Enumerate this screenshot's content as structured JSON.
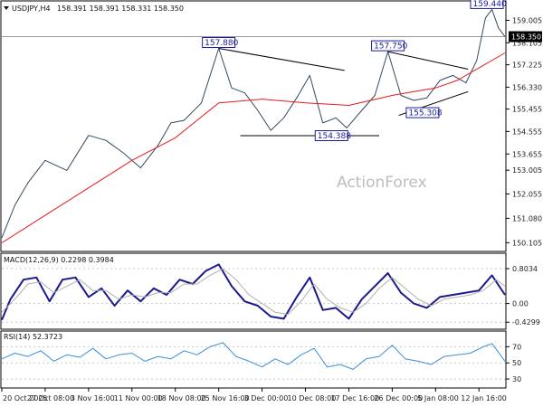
{
  "header": {
    "symbol": "USDJPY,H4",
    "quote": "158.391 158.391 158.331 158.350",
    "arrow_icon": "triangle-down-icon"
  },
  "colors": {
    "price": "#34495e",
    "ma": "#e8191b",
    "trendline": "#000000",
    "macd_main": "#1a1a8c",
    "macd_signal": "#b0b0b0",
    "rsi": "#3a8fd6",
    "label_border": "#1a1aa0",
    "current_price_bg": "#000000"
  },
  "watermark": "ActionForex",
  "chart_data": [
    {
      "type": "line",
      "panel": "price",
      "ylim": [
        149.9,
        159.6
      ],
      "yticks": [
        150.105,
        151.08,
        152.055,
        153.005,
        153.655,
        154.555,
        155.455,
        156.33,
        157.225,
        158.105,
        159.005
      ],
      "ytick_labels": [
        "150.105",
        "151.080",
        "152.055",
        "153.005",
        "153.655",
        "154.555",
        "155.455",
        "156.330",
        "157.225",
        "158.105",
        "159.005"
      ],
      "current_price": "158.350",
      "x": [
        "20 Oct 2025",
        "27 Oct 08:00",
        "3 Nov 16:00",
        "11 Nov 00:00",
        "18 Nov 08:00",
        "25 Nov 16:00",
        "3 Dec 00:00",
        "10 Dec 08:00",
        "17 Dec 16:00",
        "26 Dec 00:00",
        "5 Jan 08:00",
        "12 Jan 16:00"
      ],
      "series": [
        {
          "role": "price",
          "x": [
            0,
            0.3,
            0.6,
            1.0,
            1.5,
            2.0,
            2.4,
            2.8,
            3.2,
            3.6,
            3.9,
            4.2,
            4.6,
            5.0,
            5.3,
            5.6,
            5.9,
            6.2,
            6.5,
            6.8,
            7.1,
            7.4,
            7.7,
            7.95,
            8.3,
            8.6,
            8.9,
            9.2,
            9.5,
            9.8,
            10.1,
            10.4,
            10.7,
            10.95,
            11.15,
            11.3,
            11.45,
            11.6
          ],
          "values": [
            150.3,
            151.6,
            152.5,
            153.4,
            153.0,
            154.4,
            154.2,
            153.7,
            153.1,
            154.0,
            154.9,
            155.0,
            155.7,
            157.88,
            156.3,
            156.1,
            155.4,
            154.6,
            155.1,
            155.9,
            156.8,
            154.9,
            155.1,
            154.7,
            155.4,
            156.0,
            157.75,
            156.0,
            155.8,
            155.9,
            156.6,
            156.8,
            156.5,
            157.4,
            159.1,
            159.44,
            158.7,
            158.35
          ]
        },
        {
          "role": "moving-average",
          "x": [
            0,
            1,
            2,
            3,
            4,
            5,
            6,
            7,
            8,
            9,
            9.5,
            10,
            10.5,
            11,
            11.6
          ],
          "values": [
            150.1,
            151.2,
            152.3,
            153.4,
            154.3,
            155.7,
            155.85,
            155.7,
            155.6,
            156.0,
            156.15,
            156.3,
            156.6,
            157.1,
            157.7
          ]
        }
      ],
      "annotations": [
        {
          "label": "157.880",
          "x": 5.0,
          "y": 157.88
        },
        {
          "label": "157.750",
          "x": 8.9,
          "y": 157.75
        },
        {
          "label": "154.388",
          "x": 7.6,
          "y": 154.388
        },
        {
          "label": "155.308",
          "x": 9.7,
          "y": 155.308
        },
        {
          "label": "159.440",
          "x": 11.3,
          "y": 159.44
        }
      ],
      "trendlines": [
        {
          "x": [
            5.0,
            7.9
          ],
          "y": [
            157.88,
            157.0
          ]
        },
        {
          "x": [
            5.5,
            8.7
          ],
          "y": [
            154.388,
            154.388
          ]
        },
        {
          "x": [
            8.9,
            10.75
          ],
          "y": [
            157.75,
            157.05
          ]
        },
        {
          "x": [
            9.15,
            10.75
          ],
          "y": [
            155.2,
            156.15
          ]
        }
      ]
    },
    {
      "type": "line",
      "panel": "macd",
      "title": "MACD(12,26,9) 0.2298 0.3984",
      "ylim": [
        -0.55,
        0.95
      ],
      "yticks": [
        0.8034,
        0.0,
        -0.4299
      ],
      "ytick_labels": [
        "0.8034",
        "0.00",
        "-0.4299"
      ],
      "series": [
        {
          "role": "macd",
          "x": [
            0,
            0.2,
            0.5,
            0.8,
            1.1,
            1.4,
            1.7,
            2.0,
            2.3,
            2.6,
            2.9,
            3.2,
            3.5,
            3.8,
            4.1,
            4.4,
            4.7,
            5.0,
            5.3,
            5.6,
            5.9,
            6.2,
            6.5,
            6.8,
            7.1,
            7.4,
            7.7,
            8.0,
            8.3,
            8.6,
            8.9,
            9.2,
            9.5,
            9.8,
            10.1,
            10.4,
            10.7,
            11.0,
            11.3,
            11.6
          ],
          "values": [
            -0.38,
            0.1,
            0.55,
            0.6,
            0.05,
            0.55,
            0.6,
            0.15,
            0.35,
            -0.05,
            0.3,
            0.05,
            0.35,
            0.2,
            0.55,
            0.45,
            0.75,
            0.9,
            0.4,
            0.05,
            -0.05,
            -0.3,
            -0.35,
            0.15,
            0.6,
            -0.15,
            -0.1,
            -0.35,
            0.1,
            0.4,
            0.7,
            0.25,
            0.0,
            -0.1,
            0.15,
            0.2,
            0.25,
            0.3,
            0.65,
            0.2
          ]
        },
        {
          "role": "signal",
          "x": [
            0,
            0.3,
            0.6,
            0.9,
            1.2,
            1.5,
            1.8,
            2.1,
            2.4,
            2.7,
            3.0,
            3.3,
            3.6,
            3.9,
            4.2,
            4.5,
            4.8,
            5.1,
            5.4,
            5.7,
            6.0,
            6.3,
            6.6,
            6.9,
            7.2,
            7.5,
            7.8,
            8.1,
            8.4,
            8.7,
            9.0,
            9.3,
            9.6,
            9.9,
            10.2,
            10.5,
            10.8,
            11.1,
            11.4,
            11.6
          ],
          "values": [
            -0.2,
            0.1,
            0.45,
            0.5,
            0.25,
            0.4,
            0.55,
            0.3,
            0.3,
            0.1,
            0.2,
            0.15,
            0.25,
            0.25,
            0.45,
            0.45,
            0.65,
            0.8,
            0.55,
            0.2,
            0.0,
            -0.2,
            -0.25,
            0.05,
            0.45,
            0.1,
            -0.1,
            -0.2,
            0.0,
            0.35,
            0.6,
            0.35,
            0.1,
            -0.05,
            0.1,
            0.15,
            0.2,
            0.3,
            0.55,
            0.4
          ]
        }
      ]
    },
    {
      "type": "line",
      "panel": "rsi",
      "title": "RSI(14) 52.3723",
      "ylim": [
        20,
        85
      ],
      "yticks": [
        70,
        50,
        30
      ],
      "ytick_labels": [
        "70",
        "50",
        "30"
      ],
      "series": [
        {
          "role": "rsi",
          "x": [
            0,
            0.3,
            0.6,
            0.9,
            1.2,
            1.5,
            1.8,
            2.1,
            2.4,
            2.7,
            3.0,
            3.3,
            3.6,
            3.9,
            4.2,
            4.5,
            4.8,
            5.1,
            5.4,
            5.7,
            6.0,
            6.3,
            6.6,
            6.9,
            7.2,
            7.5,
            7.8,
            8.1,
            8.4,
            8.7,
            9.0,
            9.3,
            9.6,
            9.9,
            10.2,
            10.5,
            10.8,
            11.1,
            11.3,
            11.6
          ],
          "values": [
            55,
            62,
            58,
            65,
            52,
            60,
            57,
            68,
            55,
            60,
            62,
            52,
            58,
            55,
            65,
            60,
            70,
            75,
            58,
            52,
            45,
            55,
            48,
            60,
            68,
            45,
            48,
            42,
            55,
            58,
            72,
            55,
            52,
            48,
            58,
            60,
            62,
            70,
            74,
            52
          ]
        }
      ]
    }
  ]
}
